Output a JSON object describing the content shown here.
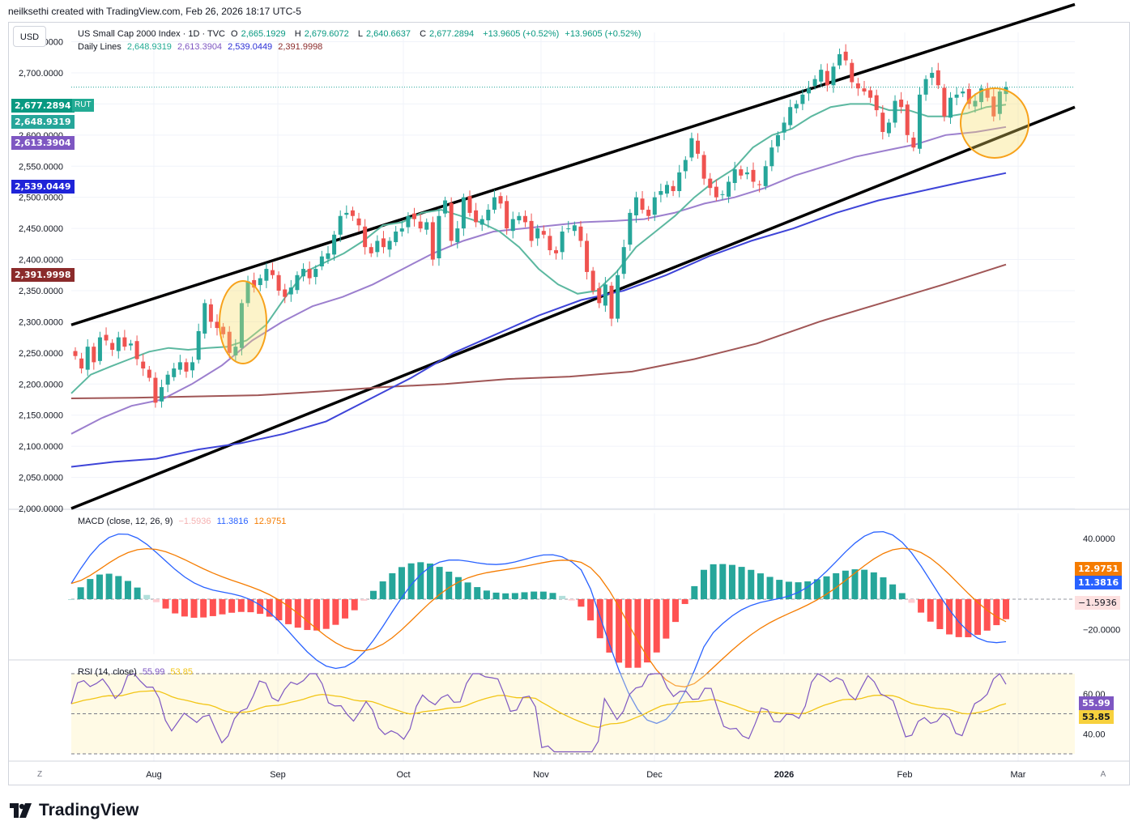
{
  "header": {
    "credit": "neilksethi created with TradingView.com, Feb 26, 2026 18:17 UTC-5"
  },
  "currency_button": "USD",
  "legend": {
    "symbol_title": "US Small Cap 2000 Index · 1D · TVC",
    "o_label": "O",
    "o_value": "2,665.1929",
    "h_label": "H",
    "h_value": "2,679.6072",
    "l_label": "L",
    "l_value": "2,640.6637",
    "c_label": "C",
    "c_value": "2,677.2894",
    "change": "+13.9605 (+0.52%)",
    "change2": "+13.9605 (+0.52%)",
    "daily_lines_title": "Daily Lines",
    "dl_values": [
      "2,648.9319",
      "2,613.3904",
      "2,539.0449",
      "2,391.9998"
    ]
  },
  "price_tags": {
    "last": "2,677.2894",
    "ticker": "RUT",
    "ma20": "2,648.9319",
    "ma50": "2,613.3904",
    "ma100": "2,539.0449",
    "ma200": "2,391.9998"
  },
  "macd": {
    "title": "MACD (close, 12, 26, 9)",
    "hist_value": "−1.5936",
    "macd_value": "11.3816",
    "signal_value": "12.9751",
    "tag_signal": "12.9751",
    "tag_macd": "11.3816",
    "tag_hist": "−1.5936",
    "axis_top": "40.0000",
    "axis_bottom": "−20.0000"
  },
  "rsi": {
    "title": "RSI (14, close)",
    "rsi_value": "55.99",
    "ma_value": "53.85",
    "tag_rsi": "55.99",
    "tag_ma": "53.85",
    "axis_top": "60.00",
    "axis_bottom": "40.00"
  },
  "time_axis": {
    "labels": [
      "Aug",
      "Sep",
      "Oct",
      "Nov",
      "Dec",
      "2026",
      "Feb",
      "Mar"
    ]
  },
  "buttons": {
    "left": "Z",
    "right": "A"
  },
  "brand": "TradingView",
  "colors": {
    "up": "#26a69a",
    "down": "#ef5350",
    "ma20": "#5cb8a0",
    "ma50": "#9c7fce",
    "ma100": "#3e44d8",
    "ma200": "#a05656",
    "macd": "#2962ff",
    "signal": "#f57c00",
    "highlight": "#f7a21b"
  },
  "chart_data": {
    "type": "candlestick",
    "title": "US Small Cap 2000 Index · 1D · TVC",
    "y_axis_labels": [
      "2,750.0000",
      "2,700.0000",
      "2,650.0000",
      "2,600.0000",
      "2,550.0000",
      "2,500.0000",
      "2,450.0000",
      "2,400.0000",
      "2,350.0000",
      "2,300.0000",
      "2,250.0000",
      "2,200.0000",
      "2,150.0000",
      "2,100.0000",
      "2,050.0000",
      "2,000.0000"
    ],
    "ylim": [
      2000,
      2765
    ],
    "candles_close": [
      2245,
      2225,
      2260,
      2235,
      2275,
      2270,
      2255,
      2275,
      2260,
      2265,
      2240,
      2225,
      2210,
      2170,
      2195,
      2215,
      2225,
      2235,
      2220,
      2235,
      2285,
      2330,
      2300,
      2290,
      2280,
      2250,
      2260,
      2330,
      2365,
      2355,
      2370,
      2385,
      2375,
      2350,
      2340,
      2355,
      2375,
      2385,
      2370,
      2385,
      2405,
      2410,
      2440,
      2470,
      2475,
      2470,
      2455,
      2420,
      2410,
      2430,
      2420,
      2430,
      2445,
      2450,
      2470,
      2465,
      2450,
      2460,
      2400,
      2470,
      2495,
      2430,
      2450,
      2500,
      2475,
      2460,
      2465,
      2480,
      2500,
      2490,
      2450,
      2465,
      2470,
      2460,
      2430,
      2450,
      2440,
      2415,
      2410,
      2445,
      2450,
      2455,
      2430,
      2380,
      2350,
      2330,
      2360,
      2305,
      2375,
      2420,
      2475,
      2500,
      2480,
      2470,
      2500,
      2510,
      2520,
      2510,
      2540,
      2560,
      2595,
      2570,
      2530,
      2515,
      2500,
      2505,
      2525,
      2545,
      2535,
      2540,
      2525,
      2520,
      2550,
      2580,
      2600,
      2620,
      2645,
      2650,
      2665,
      2675,
      2690,
      2705,
      2680,
      2710,
      2730,
      2720,
      2685,
      2675,
      2670,
      2660,
      2640,
      2605,
      2620,
      2655,
      2645,
      2600,
      2580,
      2665,
      2690,
      2700,
      2680,
      2630,
      2660,
      2665,
      2670,
      2650,
      2655,
      2675,
      2660,
      2630,
      2670,
      2677
    ],
    "ma20": [
      2185,
      2215,
      2228,
      2240,
      2252,
      2258,
      2255,
      2258,
      2260,
      2270,
      2295,
      2340,
      2380,
      2395,
      2410,
      2430,
      2455,
      2460,
      2475,
      2480,
      2470,
      2460,
      2445,
      2420,
      2385,
      2360,
      2345,
      2350,
      2380,
      2420,
      2445,
      2470,
      2500,
      2525,
      2545,
      2580,
      2600,
      2610,
      2630,
      2645,
      2650,
      2650,
      2640,
      2640,
      2630,
      2630,
      2635,
      2645,
      2649
    ],
    "ma50": [
      2120,
      2145,
      2165,
      2175,
      2200,
      2230,
      2270,
      2300,
      2325,
      2340,
      2360,
      2385,
      2410,
      2430,
      2445,
      2450,
      2455,
      2460,
      2462,
      2465,
      2475,
      2490,
      2500,
      2515,
      2535,
      2550,
      2565,
      2575,
      2585,
      2600,
      2605,
      2613
    ],
    "ma100": [
      2067,
      2075,
      2080,
      2095,
      2105,
      2120,
      2140,
      2175,
      2210,
      2250,
      2280,
      2310,
      2335,
      2350,
      2375,
      2405,
      2430,
      2450,
      2475,
      2495,
      2510,
      2525,
      2539
    ],
    "ma200": [
      2177,
      2178,
      2180,
      2182,
      2188,
      2195,
      2200,
      2208,
      2212,
      2220,
      2240,
      2265,
      2300,
      2330,
      2360,
      2392
    ],
    "channel_upper": [
      [
        0,
        2295
      ],
      [
        1,
        2810
      ]
    ],
    "channel_lower": [
      [
        0,
        2000
      ],
      [
        1,
        2645
      ]
    ]
  }
}
